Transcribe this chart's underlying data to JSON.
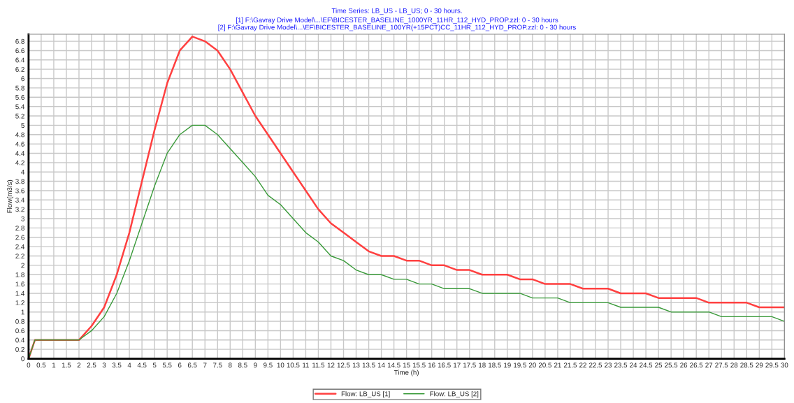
{
  "chart_data": {
    "type": "line",
    "title": "Time Series: LB_US - LB_US; 0 - 30 hours.",
    "subtitle": "[1] F:\\Gavray Drive Model\\...\\EF\\BICESTER_BASELINE_1000YR_11HR_112_HYD_PROP.zzl: 0 - 30 hours\n[2] F:\\Gavray Drive Model\\...\\EF\\BICESTER_BASELINE_100YR(+15PCT)CC_11HR_112_HYD_PROP.zzl: 0 - 30 hours",
    "xlabel": "Time (h)",
    "ylabel": "Flow(m3/s)",
    "x": [
      0,
      0.25,
      2,
      2.5,
      3,
      3.5,
      4,
      4.5,
      5,
      5.5,
      6,
      6.5,
      7,
      7.5,
      8,
      8.5,
      9,
      9.5,
      10,
      10.5,
      11,
      11.5,
      12,
      12.5,
      13,
      13.5,
      14,
      14.5,
      15,
      15.5,
      16,
      16.5,
      17,
      17.5,
      18,
      18.5,
      19,
      19.5,
      20,
      20.5,
      21,
      21.5,
      22,
      22.5,
      23,
      23.5,
      24,
      24.5,
      25,
      25.5,
      26,
      26.5,
      27,
      27.5,
      28,
      28.5,
      29,
      29.5,
      30
    ],
    "series": [
      {
        "name": "Flow: LB_US [1]",
        "color": "#ff4040",
        "values": [
          0,
          0.4,
          0.4,
          0.7,
          1.1,
          1.8,
          2.7,
          3.8,
          4.9,
          5.9,
          6.6,
          6.9,
          6.8,
          6.6,
          6.2,
          5.7,
          5.2,
          4.8,
          4.4,
          4.0,
          3.6,
          3.2,
          2.9,
          2.7,
          2.5,
          2.3,
          2.2,
          2.2,
          2.1,
          2.1,
          2.0,
          2.0,
          1.9,
          1.9,
          1.8,
          1.8,
          1.8,
          1.7,
          1.7,
          1.6,
          1.6,
          1.6,
          1.5,
          1.5,
          1.5,
          1.4,
          1.4,
          1.4,
          1.3,
          1.3,
          1.3,
          1.3,
          1.2,
          1.2,
          1.2,
          1.2,
          1.1,
          1.1,
          1.1
        ]
      },
      {
        "name": "Flow: LB_US [2]",
        "color": "#3a9a3a",
        "values": [
          0,
          0.4,
          0.4,
          0.6,
          0.9,
          1.4,
          2.1,
          2.9,
          3.7,
          4.4,
          4.8,
          5.0,
          5.0,
          4.8,
          4.5,
          4.2,
          3.9,
          3.5,
          3.3,
          3.0,
          2.7,
          2.5,
          2.2,
          2.1,
          1.9,
          1.8,
          1.8,
          1.7,
          1.7,
          1.6,
          1.6,
          1.5,
          1.5,
          1.5,
          1.4,
          1.4,
          1.4,
          1.4,
          1.3,
          1.3,
          1.3,
          1.2,
          1.2,
          1.2,
          1.2,
          1.1,
          1.1,
          1.1,
          1.1,
          1.0,
          1.0,
          1.0,
          1.0,
          0.9,
          0.9,
          0.9,
          0.9,
          0.9,
          0.8
        ]
      }
    ],
    "xlim": [
      0,
      30
    ],
    "ylim": [
      0,
      6.95
    ],
    "xticks": [
      0,
      0.5,
      1,
      1.5,
      2,
      2.5,
      3,
      3.5,
      4,
      4.5,
      5,
      5.5,
      6,
      6.5,
      7,
      7.5,
      8,
      8.5,
      9,
      9.5,
      10,
      10.5,
      11,
      11.5,
      12,
      12.5,
      13,
      13.5,
      14,
      14.5,
      15,
      15.5,
      16,
      16.5,
      17,
      17.5,
      18,
      18.5,
      19,
      19.5,
      20,
      20.5,
      21,
      21.5,
      22,
      22.5,
      23,
      23.5,
      24,
      24.5,
      25,
      25.5,
      26,
      26.5,
      27,
      27.5,
      28,
      28.5,
      29,
      29.5,
      30
    ],
    "yticks": [
      0,
      0.2,
      0.4,
      0.6,
      0.8,
      1,
      1.2,
      1.4,
      1.6,
      1.8,
      2,
      2.2,
      2.4,
      2.6,
      2.8,
      3,
      3.2,
      3.4,
      3.6,
      3.8,
      4,
      4.2,
      4.4,
      4.6,
      4.8,
      5,
      5.2,
      5.4,
      5.6,
      5.8,
      6,
      6.2,
      6.4,
      6.6,
      6.8
    ],
    "grid": true,
    "legend": "bottom",
    "marker": "none",
    "line_style": "solid"
  }
}
